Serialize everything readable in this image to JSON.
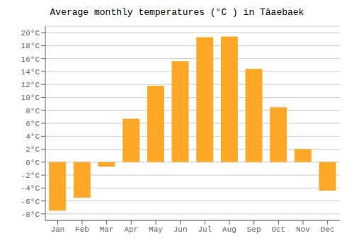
{
  "chart_data": {
    "type": "bar",
    "title": "Average monthly temperatures (°C ) in Tâ​aebaek",
    "categories": [
      "Jan",
      "Feb",
      "Mar",
      "Apr",
      "May",
      "Jun",
      "Jul",
      "Aug",
      "Sep",
      "Oct",
      "Nov",
      "Dec"
    ],
    "values": [
      -7.5,
      -5.5,
      -0.7,
      6.7,
      11.8,
      15.6,
      19.3,
      19.4,
      14.4,
      8.5,
      2.0,
      -4.4
    ],
    "color": "#FFA726",
    "ylim": [
      -9,
      21
    ],
    "yticks": [
      {
        "value": -8,
        "label": "-8°C"
      },
      {
        "value": -6,
        "label": "-6°C"
      },
      {
        "value": -4,
        "label": "-4°C"
      },
      {
        "value": -2,
        "label": "-2°C"
      },
      {
        "value": 0,
        "label": "0°C"
      },
      {
        "value": 2,
        "label": "2°C"
      },
      {
        "value": 4,
        "label": "4°C"
      },
      {
        "value": 6,
        "label": "6°C"
      },
      {
        "value": 8,
        "label": "8°C"
      },
      {
        "value": 10,
        "label": "10°C"
      },
      {
        "value": 12,
        "label": "12°C"
      },
      {
        "value": 14,
        "label": "14°C"
      },
      {
        "value": 16,
        "label": "16°C"
      },
      {
        "value": 18,
        "label": "18°C"
      },
      {
        "value": 20,
        "label": "20°C"
      }
    ],
    "grid": true
  }
}
